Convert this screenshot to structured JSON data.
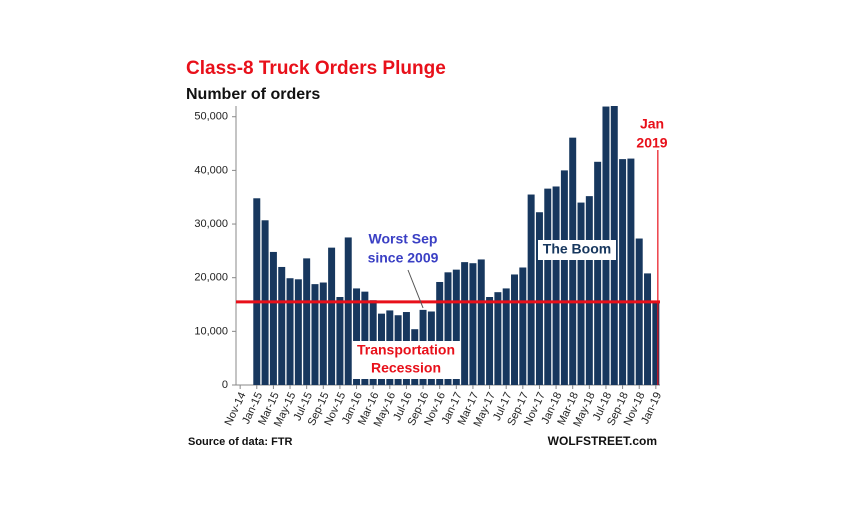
{
  "chart_data": {
    "type": "bar",
    "title": "Class-8 Truck Orders Plunge",
    "subtitle": "Number of orders",
    "categories": [
      "Nov-14",
      null,
      "Jan-15",
      null,
      "Mar-15",
      null,
      "May-15",
      null,
      "Jul-15",
      null,
      "Sep-15",
      null,
      "Nov-15",
      null,
      "Jan-16",
      null,
      "Mar-16",
      null,
      "May-16",
      null,
      "Jul-16",
      null,
      "Sep-16",
      null,
      "Nov-16",
      null,
      "Jan-17",
      null,
      "Mar-17",
      null,
      "May-17",
      null,
      "Jul-17",
      null,
      "Sep-17",
      null,
      "Nov-17",
      null,
      "Jan-18",
      null,
      "Mar-18",
      null,
      "May-18",
      null,
      "Jul-18",
      null,
      "Sep-18",
      null,
      "Nov-18",
      null,
      "Jan-19"
    ],
    "values": [
      null,
      null,
      34800,
      30700,
      24800,
      22000,
      19900,
      19700,
      23600,
      18800,
      19100,
      25600,
      16400,
      27500,
      18000,
      17400,
      15800,
      13300,
      13900,
      13000,
      13600,
      10400,
      14000,
      13700,
      19200,
      21000,
      21500,
      22900,
      22700,
      23400,
      16400,
      17300,
      18000,
      20600,
      21900,
      35500,
      32200,
      36600,
      37000,
      40000,
      46100,
      34000,
      35200,
      41600,
      51900,
      52000,
      42100,
      42200,
      27300,
      20800,
      15600
    ],
    "color": "#17375e",
    "ylim": [
      0,
      52000
    ],
    "yticks": [
      0,
      {
        "value": 10000,
        "label": "10,000"
      },
      {
        "value": 20000,
        "label": "20,000"
      },
      {
        "value": 30000,
        "label": "30,000"
      },
      {
        "value": 40000,
        "label": "40,000"
      },
      {
        "value": 50000,
        "label": "50,000"
      }
    ],
    "reference_line": {
      "value": 15500,
      "color": "#e8101a"
    },
    "annotations": {
      "worst_sep": [
        "Worst Sep",
        "since 2009"
      ],
      "boom": "The Boom",
      "recession": [
        "Transportation",
        "Recession"
      ],
      "jan_2019": [
        "Jan",
        "2019"
      ]
    },
    "source": "Source of data: FTR",
    "credit": "WOLFSTREET.com"
  }
}
